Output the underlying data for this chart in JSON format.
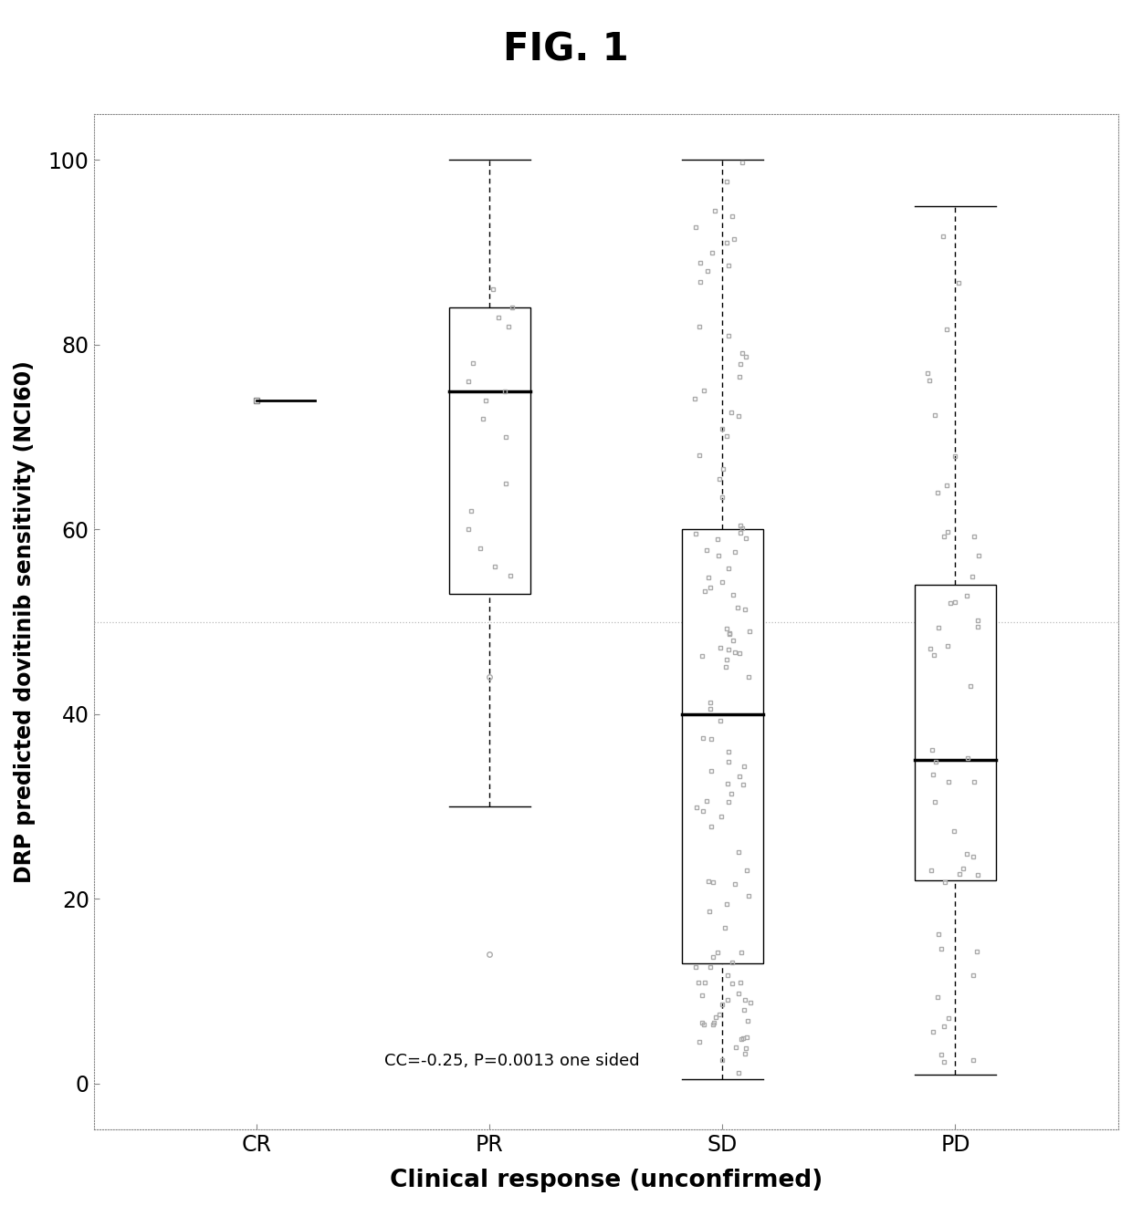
{
  "title": "FIG. 1",
  "xlabel": "Clinical response (unconfirmed)",
  "ylabel": "DRP predicted dovitinib sensitivity (NCI60)",
  "categories": [
    "CR",
    "PR",
    "SD",
    "PD"
  ],
  "annotation": "CC=-0.25, P=0.0013 one sided",
  "ylim": [
    -5,
    105
  ],
  "yticks": [
    0,
    20,
    40,
    60,
    80,
    100
  ],
  "hline_y": 50,
  "background_color": "#ffffff",
  "box_color": "#ffffff",
  "box_edge_color": "#000000",
  "median_color": "#000000",
  "whisker_color": "#000000",
  "jitter_color": "#aaaaaa",
  "CR": {
    "median": 74.0,
    "q1": 74.0,
    "q3": 74.0,
    "whisker_low": 74.0,
    "whisker_high": 74.0,
    "jitter_pts": [
      74.0
    ]
  },
  "PR": {
    "median": 75.0,
    "q1": 53.0,
    "q3": 84.0,
    "whisker_low": 30.0,
    "whisker_high": 100.0,
    "outliers": [
      44.0,
      14.0
    ],
    "jitter_pts": [
      84,
      86,
      83,
      82,
      78,
      76,
      75,
      74,
      72,
      70,
      65,
      62,
      60,
      58,
      56,
      55
    ]
  },
  "SD": {
    "median": 40.0,
    "q1": 13.0,
    "q3": 60.0,
    "whisker_low": 0.5,
    "whisker_high": 100.0,
    "outliers": [],
    "n_jitter": 120
  },
  "PD": {
    "median": 35.0,
    "q1": 22.0,
    "q3": 54.0,
    "whisker_low": 1.0,
    "whisker_high": 95.0,
    "outliers": [],
    "n_jitter": 50
  }
}
